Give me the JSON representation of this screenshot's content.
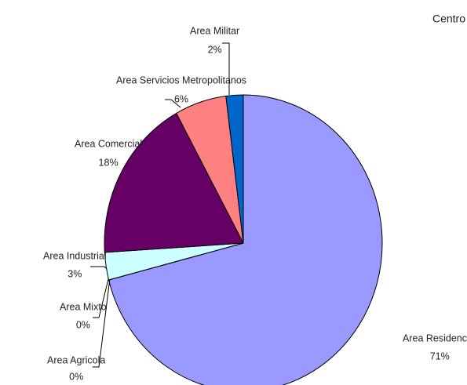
{
  "chart_data": {
    "type": "pie",
    "title": "Centro",
    "categories": [
      "Area Residencial",
      "Area Agricola",
      "Area Mixto",
      "Area Industrial",
      "Area Comercial",
      "Area Servicios Metropolitanos",
      "Area Militar"
    ],
    "values": [
      71,
      0,
      0,
      3,
      18,
      6,
      2
    ],
    "value_labels": [
      "71%",
      "0%",
      "0%",
      "3%",
      "18%",
      "6%",
      "2%"
    ],
    "colors": [
      "#9999ff",
      "#993366",
      "#ffffcc",
      "#ccffff",
      "#660066",
      "#ff8080",
      "#0066cc"
    ]
  }
}
